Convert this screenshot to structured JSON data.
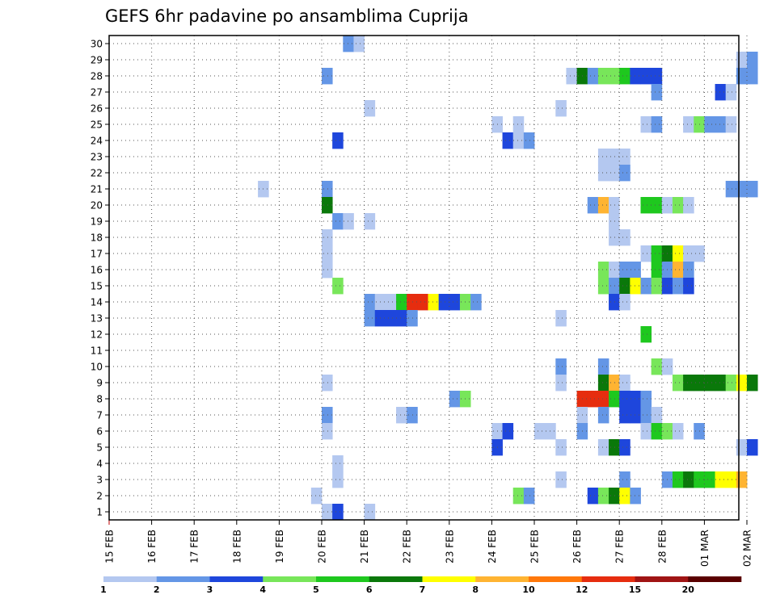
{
  "chart_data": {
    "type": "heatmap",
    "title": "GEFS 6hr padavine po ansamblima Cuprija",
    "x_tick_labels": [
      "15 FEB",
      "16 FEB",
      "17 FEB",
      "18 FEB",
      "19 FEB",
      "20 FEB",
      "21 FEB",
      "22 FEB",
      "23 FEB",
      "24 FEB",
      "25 FEB",
      "26 FEB",
      "27 FEB",
      "28 FEB",
      "01 MAR",
      "02 MAR"
    ],
    "y_tick_labels": [
      "1",
      "2",
      "3",
      "4",
      "5",
      "6",
      "7",
      "8",
      "9",
      "10",
      "11",
      "12",
      "13",
      "14",
      "15",
      "16",
      "17",
      "18",
      "19",
      "20",
      "21",
      "22",
      "23",
      "24",
      "25",
      "26",
      "27",
      "28",
      "29",
      "30"
    ],
    "time_step_hours": 6,
    "grid": "dotted",
    "legend": {
      "position": "bottom",
      "levels": [
        "1",
        "2",
        "3",
        "4",
        "5",
        "6",
        "7",
        "8",
        "10",
        "12",
        "15",
        "20"
      ],
      "colors": [
        "#b4c8f0",
        "#6496e6",
        "#1e46dc",
        "#78e65a",
        "#1ec81e",
        "#0a780a",
        "#ffff00",
        "#ffb432",
        "#ff780a",
        "#e62d0f",
        "#a01414",
        "#5a0000"
      ]
    },
    "cells": [
      {
        "member": 30,
        "time": "20 FEB 12Z",
        "level": 2
      },
      {
        "member": 30,
        "time": "20 FEB 18Z",
        "level": 1
      },
      {
        "member": 29,
        "time": "01 MAR 18Z",
        "level": 1
      },
      {
        "member": 29,
        "time": "02 MAR 00Z",
        "level": 2
      },
      {
        "member": 28,
        "time": "20 FEB 00Z",
        "level": 2
      },
      {
        "member": 28,
        "time": "25 FEB 18Z",
        "level": 1
      },
      {
        "member": 28,
        "time": "26 FEB 00Z",
        "level": 6
      },
      {
        "member": 28,
        "time": "26 FEB 06Z",
        "level": 2
      },
      {
        "member": 28,
        "time": "26 FEB 12Z",
        "level": 4
      },
      {
        "member": 28,
        "time": "26 FEB 18Z",
        "level": 4
      },
      {
        "member": 28,
        "time": "27 FEB 00Z",
        "level": 5
      },
      {
        "member": 28,
        "time": "27 FEB 06Z",
        "level": 3
      },
      {
        "member": 28,
        "time": "27 FEB 12Z",
        "level": 3
      },
      {
        "member": 28,
        "time": "27 FEB 18Z",
        "level": 3
      },
      {
        "member": 28,
        "time": "01 MAR 18Z",
        "level": 2
      },
      {
        "member": 28,
        "time": "02 MAR 00Z",
        "level": 2
      },
      {
        "member": 27,
        "time": "27 FEB 18Z",
        "level": 2
      },
      {
        "member": 27,
        "time": "01 MAR 06Z",
        "level": 3
      },
      {
        "member": 27,
        "time": "01 MAR 12Z",
        "level": 1
      },
      {
        "member": 26,
        "time": "21 FEB 00Z",
        "level": 1
      },
      {
        "member": 26,
        "time": "25 FEB 12Z",
        "level": 1
      },
      {
        "member": 25,
        "time": "24 FEB 00Z",
        "level": 1
      },
      {
        "member": 25,
        "time": "24 FEB 12Z",
        "level": 1
      },
      {
        "member": 25,
        "time": "27 FEB 12Z",
        "level": 1
      },
      {
        "member": 25,
        "time": "27 FEB 18Z",
        "level": 2
      },
      {
        "member": 25,
        "time": "28 FEB 12Z",
        "level": 1
      },
      {
        "member": 25,
        "time": "28 FEB 18Z",
        "level": 4
      },
      {
        "member": 25,
        "time": "01 MAR 00Z",
        "level": 2
      },
      {
        "member": 25,
        "time": "01 MAR 06Z",
        "level": 2
      },
      {
        "member": 25,
        "time": "01 MAR 12Z",
        "level": 1
      },
      {
        "member": 24,
        "time": "20 FEB 06Z",
        "level": 3
      },
      {
        "member": 24,
        "time": "24 FEB 06Z",
        "level": 3
      },
      {
        "member": 24,
        "time": "24 FEB 12Z",
        "level": 1
      },
      {
        "member": 24,
        "time": "24 FEB 18Z",
        "level": 2
      },
      {
        "member": 23,
        "time": "26 FEB 12Z",
        "level": 1
      },
      {
        "member": 23,
        "time": "26 FEB 18Z",
        "level": 1
      },
      {
        "member": 23,
        "time": "27 FEB 00Z",
        "level": 1
      },
      {
        "member": 22,
        "time": "26 FEB 12Z",
        "level": 1
      },
      {
        "member": 22,
        "time": "26 FEB 18Z",
        "level": 1
      },
      {
        "member": 22,
        "time": "27 FEB 00Z",
        "level": 2
      },
      {
        "member": 21,
        "time": "18 FEB 12Z",
        "level": 1
      },
      {
        "member": 21,
        "time": "20 FEB 00Z",
        "level": 2
      },
      {
        "member": 21,
        "time": "01 MAR 12Z",
        "level": 2
      },
      {
        "member": 21,
        "time": "01 MAR 18Z",
        "level": 2
      },
      {
        "member": 21,
        "time": "02 MAR 00Z",
        "level": 2
      },
      {
        "member": 20,
        "time": "20 FEB 00Z",
        "level": 6
      },
      {
        "member": 20,
        "time": "26 FEB 06Z",
        "level": 2
      },
      {
        "member": 20,
        "time": "26 FEB 12Z",
        "level": 8
      },
      {
        "member": 20,
        "time": "26 FEB 18Z",
        "level": 1
      },
      {
        "member": 20,
        "time": "27 FEB 12Z",
        "level": 5
      },
      {
        "member": 20,
        "time": "27 FEB 18Z",
        "level": 5
      },
      {
        "member": 20,
        "time": "28 FEB 00Z",
        "level": 1
      },
      {
        "member": 20,
        "time": "28 FEB 06Z",
        "level": 4
      },
      {
        "member": 20,
        "time": "28 FEB 12Z",
        "level": 1
      },
      {
        "member": 19,
        "time": "20 FEB 06Z",
        "level": 2
      },
      {
        "member": 19,
        "time": "20 FEB 12Z",
        "level": 1
      },
      {
        "member": 19,
        "time": "21 FEB 00Z",
        "level": 1
      },
      {
        "member": 19,
        "time": "26 FEB 18Z",
        "level": 1
      },
      {
        "member": 18,
        "time": "20 FEB 00Z",
        "level": 1
      },
      {
        "member": 18,
        "time": "26 FEB 18Z",
        "level": 1
      },
      {
        "member": 18,
        "time": "27 FEB 00Z",
        "level": 1
      },
      {
        "member": 17,
        "time": "20 FEB 00Z",
        "level": 1
      },
      {
        "member": 17,
        "time": "27 FEB 12Z",
        "level": 1
      },
      {
        "member": 17,
        "time": "27 FEB 18Z",
        "level": 5
      },
      {
        "member": 17,
        "time": "28 FEB 00Z",
        "level": 6
      },
      {
        "member": 17,
        "time": "28 FEB 06Z",
        "level": 7
      },
      {
        "member": 17,
        "time": "28 FEB 12Z",
        "level": 1
      },
      {
        "member": 17,
        "time": "28 FEB 18Z",
        "level": 1
      },
      {
        "member": 16,
        "time": "20 FEB 00Z",
        "level": 1
      },
      {
        "member": 16,
        "time": "26 FEB 12Z",
        "level": 4
      },
      {
        "member": 16,
        "time": "26 FEB 18Z",
        "level": 1
      },
      {
        "member": 16,
        "time": "27 FEB 00Z",
        "level": 2
      },
      {
        "member": 16,
        "time": "27 FEB 06Z",
        "level": 2
      },
      {
        "member": 16,
        "time": "27 FEB 18Z",
        "level": 5
      },
      {
        "member": 16,
        "time": "28 FEB 00Z",
        "level": 2
      },
      {
        "member": 16,
        "time": "28 FEB 06Z",
        "level": 8
      },
      {
        "member": 16,
        "time": "28 FEB 12Z",
        "level": 2
      },
      {
        "member": 15,
        "time": "20 FEB 06Z",
        "level": 4
      },
      {
        "member": 15,
        "time": "26 FEB 12Z",
        "level": 4
      },
      {
        "member": 15,
        "time": "26 FEB 18Z",
        "level": 2
      },
      {
        "member": 15,
        "time": "27 FEB 00Z",
        "level": 6
      },
      {
        "member": 15,
        "time": "27 FEB 06Z",
        "level": 7
      },
      {
        "member": 15,
        "time": "27 FEB 12Z",
        "level": 2
      },
      {
        "member": 15,
        "time": "27 FEB 18Z",
        "level": 4
      },
      {
        "member": 15,
        "time": "28 FEB 00Z",
        "level": 3
      },
      {
        "member": 15,
        "time": "28 FEB 06Z",
        "level": 2
      },
      {
        "member": 15,
        "time": "28 FEB 12Z",
        "level": 3
      },
      {
        "member": 14,
        "time": "21 FEB 00Z",
        "level": 2
      },
      {
        "member": 14,
        "time": "21 FEB 06Z",
        "level": 1
      },
      {
        "member": 14,
        "time": "21 FEB 12Z",
        "level": 1
      },
      {
        "member": 14,
        "time": "21 FEB 18Z",
        "level": 5
      },
      {
        "member": 14,
        "time": "22 FEB 00Z",
        "level": 12
      },
      {
        "member": 14,
        "time": "22 FEB 06Z",
        "level": 12
      },
      {
        "member": 14,
        "time": "22 FEB 12Z",
        "level": 7
      },
      {
        "member": 14,
        "time": "22 FEB 18Z",
        "level": 3
      },
      {
        "member": 14,
        "time": "23 FEB 00Z",
        "level": 3
      },
      {
        "member": 14,
        "time": "23 FEB 06Z",
        "level": 4
      },
      {
        "member": 14,
        "time": "23 FEB 12Z",
        "level": 2
      },
      {
        "member": 14,
        "time": "26 FEB 18Z",
        "level": 3
      },
      {
        "member": 14,
        "time": "27 FEB 00Z",
        "level": 1
      },
      {
        "member": 13,
        "time": "21 FEB 00Z",
        "level": 2
      },
      {
        "member": 13,
        "time": "21 FEB 06Z",
        "level": 3
      },
      {
        "member": 13,
        "time": "21 FEB 12Z",
        "level": 3
      },
      {
        "member": 13,
        "time": "21 FEB 18Z",
        "level": 3
      },
      {
        "member": 13,
        "time": "22 FEB 00Z",
        "level": 2
      },
      {
        "member": 13,
        "time": "25 FEB 12Z",
        "level": 1
      },
      {
        "member": 12,
        "time": "27 FEB 12Z",
        "level": 5
      },
      {
        "member": 10,
        "time": "25 FEB 12Z",
        "level": 2
      },
      {
        "member": 10,
        "time": "26 FEB 12Z",
        "level": 2
      },
      {
        "member": 10,
        "time": "27 FEB 18Z",
        "level": 4
      },
      {
        "member": 10,
        "time": "28 FEB 00Z",
        "level": 1
      },
      {
        "member": 9,
        "time": "20 FEB 00Z",
        "level": 1
      },
      {
        "member": 9,
        "time": "25 FEB 12Z",
        "level": 1
      },
      {
        "member": 9,
        "time": "26 FEB 12Z",
        "level": 6
      },
      {
        "member": 9,
        "time": "26 FEB 18Z",
        "level": 8
      },
      {
        "member": 9,
        "time": "27 FEB 00Z",
        "level": 1
      },
      {
        "member": 9,
        "time": "28 FEB 06Z",
        "level": 4
      },
      {
        "member": 9,
        "time": "28 FEB 12Z",
        "level": 6
      },
      {
        "member": 9,
        "time": "28 FEB 18Z",
        "level": 6
      },
      {
        "member": 9,
        "time": "01 MAR 00Z",
        "level": 6
      },
      {
        "member": 9,
        "time": "01 MAR 06Z",
        "level": 6
      },
      {
        "member": 9,
        "time": "01 MAR 12Z",
        "level": 4
      },
      {
        "member": 9,
        "time": "01 MAR 18Z",
        "level": 7
      },
      {
        "member": 9,
        "time": "02 MAR 00Z",
        "level": 6
      },
      {
        "member": 8,
        "time": "23 FEB 00Z",
        "level": 2
      },
      {
        "member": 8,
        "time": "23 FEB 06Z",
        "level": 4
      },
      {
        "member": 8,
        "time": "26 FEB 00Z",
        "level": 12
      },
      {
        "member": 8,
        "time": "26 FEB 06Z",
        "level": 12
      },
      {
        "member": 8,
        "time": "26 FEB 12Z",
        "level": 12
      },
      {
        "member": 8,
        "time": "26 FEB 18Z",
        "level": 5
      },
      {
        "member": 8,
        "time": "27 FEB 00Z",
        "level": 3
      },
      {
        "member": 8,
        "time": "27 FEB 06Z",
        "level": 3
      },
      {
        "member": 8,
        "time": "27 FEB 12Z",
        "level": 2
      },
      {
        "member": 7,
        "time": "20 FEB 00Z",
        "level": 2
      },
      {
        "member": 7,
        "time": "21 FEB 18Z",
        "level": 1
      },
      {
        "member": 7,
        "time": "22 FEB 00Z",
        "level": 2
      },
      {
        "member": 7,
        "time": "26 FEB 00Z",
        "level": 1
      },
      {
        "member": 7,
        "time": "26 FEB 12Z",
        "level": 2
      },
      {
        "member": 7,
        "time": "27 FEB 00Z",
        "level": 3
      },
      {
        "member": 7,
        "time": "27 FEB 06Z",
        "level": 3
      },
      {
        "member": 7,
        "time": "27 FEB 12Z",
        "level": 2
      },
      {
        "member": 7,
        "time": "27 FEB 18Z",
        "level": 1
      },
      {
        "member": 6,
        "time": "20 FEB 00Z",
        "level": 1
      },
      {
        "member": 6,
        "time": "24 FEB 00Z",
        "level": 1
      },
      {
        "member": 6,
        "time": "24 FEB 06Z",
        "level": 3
      },
      {
        "member": 6,
        "time": "25 FEB 00Z",
        "level": 1
      },
      {
        "member": 6,
        "time": "25 FEB 06Z",
        "level": 1
      },
      {
        "member": 6,
        "time": "26 FEB 00Z",
        "level": 2
      },
      {
        "member": 6,
        "time": "27 FEB 12Z",
        "level": 1
      },
      {
        "member": 6,
        "time": "27 FEB 18Z",
        "level": 5
      },
      {
        "member": 6,
        "time": "28 FEB 00Z",
        "level": 4
      },
      {
        "member": 6,
        "time": "28 FEB 06Z",
        "level": 1
      },
      {
        "member": 6,
        "time": "28 FEB 18Z",
        "level": 2
      },
      {
        "member": 5,
        "time": "24 FEB 00Z",
        "level": 3
      },
      {
        "member": 5,
        "time": "25 FEB 12Z",
        "level": 1
      },
      {
        "member": 5,
        "time": "26 FEB 12Z",
        "level": 1
      },
      {
        "member": 5,
        "time": "26 FEB 18Z",
        "level": 6
      },
      {
        "member": 5,
        "time": "27 FEB 00Z",
        "level": 3
      },
      {
        "member": 5,
        "time": "01 MAR 18Z",
        "level": 1
      },
      {
        "member": 5,
        "time": "02 MAR 00Z",
        "level": 3
      },
      {
        "member": 4,
        "time": "20 FEB 06Z",
        "level": 1
      },
      {
        "member": 3,
        "time": "20 FEB 06Z",
        "level": 1
      },
      {
        "member": 3,
        "time": "25 FEB 12Z",
        "level": 1
      },
      {
        "member": 3,
        "time": "27 FEB 00Z",
        "level": 2
      },
      {
        "member": 3,
        "time": "28 FEB 00Z",
        "level": 2
      },
      {
        "member": 3,
        "time": "28 FEB 06Z",
        "level": 5
      },
      {
        "member": 3,
        "time": "28 FEB 12Z",
        "level": 6
      },
      {
        "member": 3,
        "time": "28 FEB 18Z",
        "level": 5
      },
      {
        "member": 3,
        "time": "01 MAR 00Z",
        "level": 5
      },
      {
        "member": 3,
        "time": "01 MAR 06Z",
        "level": 7
      },
      {
        "member": 3,
        "time": "01 MAR 12Z",
        "level": 7
      },
      {
        "member": 3,
        "time": "01 MAR 18Z",
        "level": 8
      },
      {
        "member": 2,
        "time": "19 FEB 18Z",
        "level": 1
      },
      {
        "member": 2,
        "time": "24 FEB 12Z",
        "level": 4
      },
      {
        "member": 2,
        "time": "24 FEB 18Z",
        "level": 2
      },
      {
        "member": 2,
        "time": "26 FEB 06Z",
        "level": 3
      },
      {
        "member": 2,
        "time": "26 FEB 12Z",
        "level": 4
      },
      {
        "member": 2,
        "time": "26 FEB 18Z",
        "level": 6
      },
      {
        "member": 2,
        "time": "27 FEB 00Z",
        "level": 7
      },
      {
        "member": 2,
        "time": "27 FEB 06Z",
        "level": 2
      },
      {
        "member": 1,
        "time": "20 FEB 00Z",
        "level": 1
      },
      {
        "member": 1,
        "time": "20 FEB 06Z",
        "level": 3
      },
      {
        "member": 1,
        "time": "21 FEB 00Z",
        "level": 1
      }
    ]
  }
}
